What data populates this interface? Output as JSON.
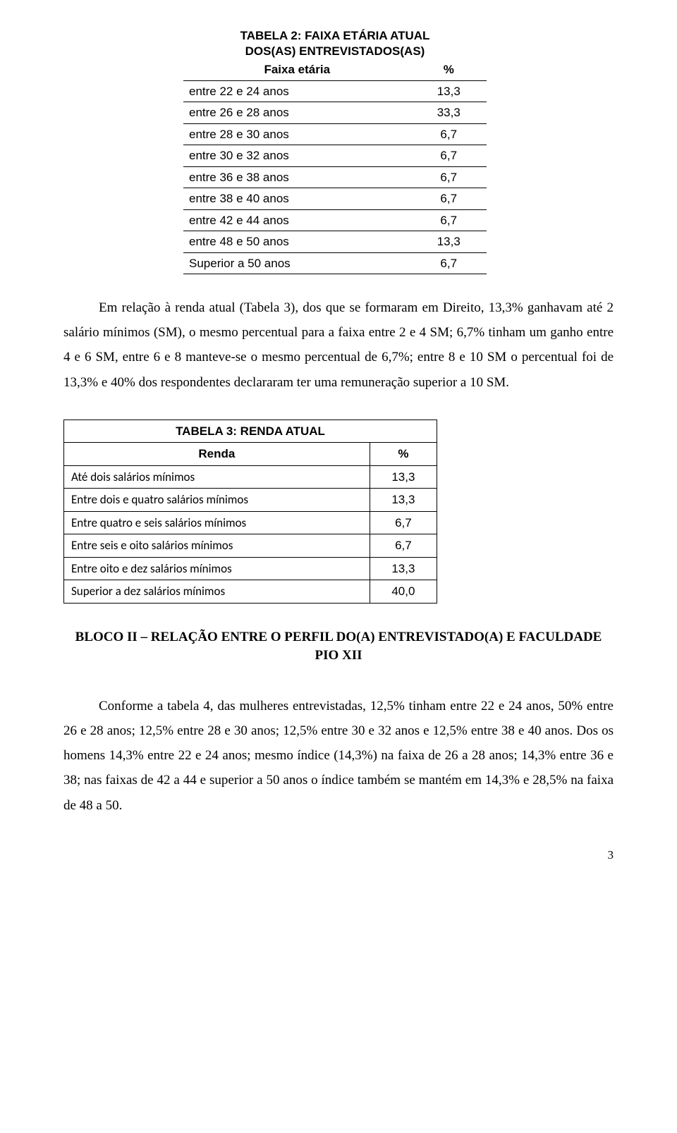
{
  "table2": {
    "title_line1": "TABELA 2: FAIXA ETÁRIA ATUAL",
    "title_line2": "DOS(AS) ENTREVISTADOS(AS)",
    "header_label": "Faixa etária",
    "header_value": "%",
    "rows": [
      {
        "label": "entre 22 e 24 anos",
        "value": "13,3"
      },
      {
        "label": "entre 26 e 28 anos",
        "value": "33,3"
      },
      {
        "label": "entre 28 e 30 anos",
        "value": "6,7"
      },
      {
        "label": "entre 30 e 32 anos",
        "value": "6,7"
      },
      {
        "label": "entre 36 e 38 anos",
        "value": "6,7"
      },
      {
        "label": "entre 38 e 40 anos",
        "value": "6,7"
      },
      {
        "label": "entre 42 e 44 anos",
        "value": "6,7"
      },
      {
        "label": "entre 48 e 50 anos",
        "value": "13,3"
      },
      {
        "label": "Superior a 50 anos",
        "value": "6,7"
      }
    ]
  },
  "para1": "Em relação à renda atual (Tabela 3), dos que se formaram em Direito, 13,3% ganhavam até 2 salário mínimos (SM), o mesmo percentual para a faixa entre 2 e 4 SM; 6,7%  tinham um ganho entre 4 e 6 SM, entre 6 e 8 manteve-se o mesmo percentual de 6,7%; entre 8 e 10 SM o percentual foi de 13,3% e 40% dos respondentes declararam ter uma remuneração superior a 10 SM.",
  "table3": {
    "title": "TABELA 3: RENDA ATUAL",
    "header_label": "Renda",
    "header_value": "%",
    "rows": [
      {
        "label": "Até dois salários mínimos",
        "value": "13,3"
      },
      {
        "label": "Entre dois e quatro salários mínimos",
        "value": "13,3"
      },
      {
        "label": "Entre quatro e seis salários mínimos",
        "value": "6,7"
      },
      {
        "label": "Entre seis e oito salários mínimos",
        "value": "6,7"
      },
      {
        "label": "Entre oito e dez salários mínimos",
        "value": "13,3"
      },
      {
        "label": "Superior a dez salários mínimos",
        "value": "40,0"
      }
    ]
  },
  "block2_title": "BLOCO II – RELAÇÃO ENTRE O PERFIL DO(A) ENTREVISTADO(A) E FACULDADE PIO XII",
  "para2": "Conforme a tabela 4, das mulheres entrevistadas, 12,5% tinham entre 22 e 24 anos, 50% entre 26 e 28 anos; 12,5% entre 28 e 30 anos; 12,5% entre 30 e 32 anos e 12,5% entre 38 e 40 anos. Dos os homens 14,3% entre 22 e 24 anos; mesmo índice (14,3%) na faixa de 26 a 28 anos; 14,3% entre 36 e 38; nas faixas de 42 a 44 e superior a 50 anos o índice também se mantém em 14,3% e 28,5%  na faixa de 48 a 50.",
  "page_number": "3",
  "colors": {
    "text": "#000000",
    "background": "#ffffff",
    "border": "#000000"
  },
  "fonts": {
    "body_serif": "Times New Roman",
    "table_sans": "Arial",
    "t3_rows": "Calibri"
  }
}
